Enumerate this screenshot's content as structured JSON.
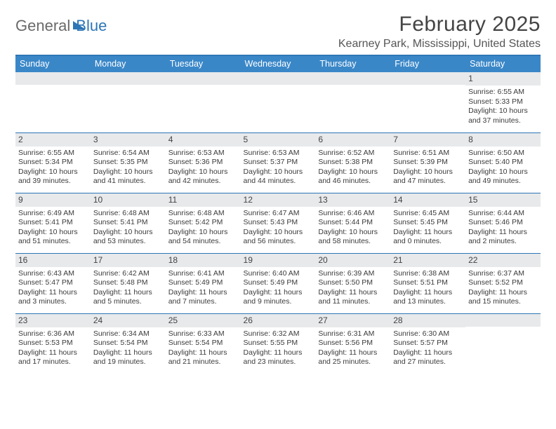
{
  "logo": {
    "word1": "General",
    "word2": "Blue"
  },
  "header": {
    "month_title": "February 2025",
    "location": "Kearney Park, Mississippi, United States"
  },
  "colors": {
    "header_bar": "#3a87c8",
    "rule": "#2d76b6",
    "daynum_bg": "#e7e9eb",
    "text": "#3b3b3b",
    "title": "#444444"
  },
  "day_headers": [
    "Sunday",
    "Monday",
    "Tuesday",
    "Wednesday",
    "Thursday",
    "Friday",
    "Saturday"
  ],
  "weeks": [
    [
      {
        "n": "",
        "sunrise": "",
        "sunset": "",
        "daylight": ""
      },
      {
        "n": "",
        "sunrise": "",
        "sunset": "",
        "daylight": ""
      },
      {
        "n": "",
        "sunrise": "",
        "sunset": "",
        "daylight": ""
      },
      {
        "n": "",
        "sunrise": "",
        "sunset": "",
        "daylight": ""
      },
      {
        "n": "",
        "sunrise": "",
        "sunset": "",
        "daylight": ""
      },
      {
        "n": "",
        "sunrise": "",
        "sunset": "",
        "daylight": ""
      },
      {
        "n": "1",
        "sunrise": "Sunrise: 6:55 AM",
        "sunset": "Sunset: 5:33 PM",
        "daylight": "Daylight: 10 hours and 37 minutes."
      }
    ],
    [
      {
        "n": "2",
        "sunrise": "Sunrise: 6:55 AM",
        "sunset": "Sunset: 5:34 PM",
        "daylight": "Daylight: 10 hours and 39 minutes."
      },
      {
        "n": "3",
        "sunrise": "Sunrise: 6:54 AM",
        "sunset": "Sunset: 5:35 PM",
        "daylight": "Daylight: 10 hours and 41 minutes."
      },
      {
        "n": "4",
        "sunrise": "Sunrise: 6:53 AM",
        "sunset": "Sunset: 5:36 PM",
        "daylight": "Daylight: 10 hours and 42 minutes."
      },
      {
        "n": "5",
        "sunrise": "Sunrise: 6:53 AM",
        "sunset": "Sunset: 5:37 PM",
        "daylight": "Daylight: 10 hours and 44 minutes."
      },
      {
        "n": "6",
        "sunrise": "Sunrise: 6:52 AM",
        "sunset": "Sunset: 5:38 PM",
        "daylight": "Daylight: 10 hours and 46 minutes."
      },
      {
        "n": "7",
        "sunrise": "Sunrise: 6:51 AM",
        "sunset": "Sunset: 5:39 PM",
        "daylight": "Daylight: 10 hours and 47 minutes."
      },
      {
        "n": "8",
        "sunrise": "Sunrise: 6:50 AM",
        "sunset": "Sunset: 5:40 PM",
        "daylight": "Daylight: 10 hours and 49 minutes."
      }
    ],
    [
      {
        "n": "9",
        "sunrise": "Sunrise: 6:49 AM",
        "sunset": "Sunset: 5:41 PM",
        "daylight": "Daylight: 10 hours and 51 minutes."
      },
      {
        "n": "10",
        "sunrise": "Sunrise: 6:48 AM",
        "sunset": "Sunset: 5:41 PM",
        "daylight": "Daylight: 10 hours and 53 minutes."
      },
      {
        "n": "11",
        "sunrise": "Sunrise: 6:48 AM",
        "sunset": "Sunset: 5:42 PM",
        "daylight": "Daylight: 10 hours and 54 minutes."
      },
      {
        "n": "12",
        "sunrise": "Sunrise: 6:47 AM",
        "sunset": "Sunset: 5:43 PM",
        "daylight": "Daylight: 10 hours and 56 minutes."
      },
      {
        "n": "13",
        "sunrise": "Sunrise: 6:46 AM",
        "sunset": "Sunset: 5:44 PM",
        "daylight": "Daylight: 10 hours and 58 minutes."
      },
      {
        "n": "14",
        "sunrise": "Sunrise: 6:45 AM",
        "sunset": "Sunset: 5:45 PM",
        "daylight": "Daylight: 11 hours and 0 minutes."
      },
      {
        "n": "15",
        "sunrise": "Sunrise: 6:44 AM",
        "sunset": "Sunset: 5:46 PM",
        "daylight": "Daylight: 11 hours and 2 minutes."
      }
    ],
    [
      {
        "n": "16",
        "sunrise": "Sunrise: 6:43 AM",
        "sunset": "Sunset: 5:47 PM",
        "daylight": "Daylight: 11 hours and 3 minutes."
      },
      {
        "n": "17",
        "sunrise": "Sunrise: 6:42 AM",
        "sunset": "Sunset: 5:48 PM",
        "daylight": "Daylight: 11 hours and 5 minutes."
      },
      {
        "n": "18",
        "sunrise": "Sunrise: 6:41 AM",
        "sunset": "Sunset: 5:49 PM",
        "daylight": "Daylight: 11 hours and 7 minutes."
      },
      {
        "n": "19",
        "sunrise": "Sunrise: 6:40 AM",
        "sunset": "Sunset: 5:49 PM",
        "daylight": "Daylight: 11 hours and 9 minutes."
      },
      {
        "n": "20",
        "sunrise": "Sunrise: 6:39 AM",
        "sunset": "Sunset: 5:50 PM",
        "daylight": "Daylight: 11 hours and 11 minutes."
      },
      {
        "n": "21",
        "sunrise": "Sunrise: 6:38 AM",
        "sunset": "Sunset: 5:51 PM",
        "daylight": "Daylight: 11 hours and 13 minutes."
      },
      {
        "n": "22",
        "sunrise": "Sunrise: 6:37 AM",
        "sunset": "Sunset: 5:52 PM",
        "daylight": "Daylight: 11 hours and 15 minutes."
      }
    ],
    [
      {
        "n": "23",
        "sunrise": "Sunrise: 6:36 AM",
        "sunset": "Sunset: 5:53 PM",
        "daylight": "Daylight: 11 hours and 17 minutes."
      },
      {
        "n": "24",
        "sunrise": "Sunrise: 6:34 AM",
        "sunset": "Sunset: 5:54 PM",
        "daylight": "Daylight: 11 hours and 19 minutes."
      },
      {
        "n": "25",
        "sunrise": "Sunrise: 6:33 AM",
        "sunset": "Sunset: 5:54 PM",
        "daylight": "Daylight: 11 hours and 21 minutes."
      },
      {
        "n": "26",
        "sunrise": "Sunrise: 6:32 AM",
        "sunset": "Sunset: 5:55 PM",
        "daylight": "Daylight: 11 hours and 23 minutes."
      },
      {
        "n": "27",
        "sunrise": "Sunrise: 6:31 AM",
        "sunset": "Sunset: 5:56 PM",
        "daylight": "Daylight: 11 hours and 25 minutes."
      },
      {
        "n": "28",
        "sunrise": "Sunrise: 6:30 AM",
        "sunset": "Sunset: 5:57 PM",
        "daylight": "Daylight: 11 hours and 27 minutes."
      },
      {
        "n": "",
        "sunrise": "",
        "sunset": "",
        "daylight": ""
      }
    ]
  ]
}
